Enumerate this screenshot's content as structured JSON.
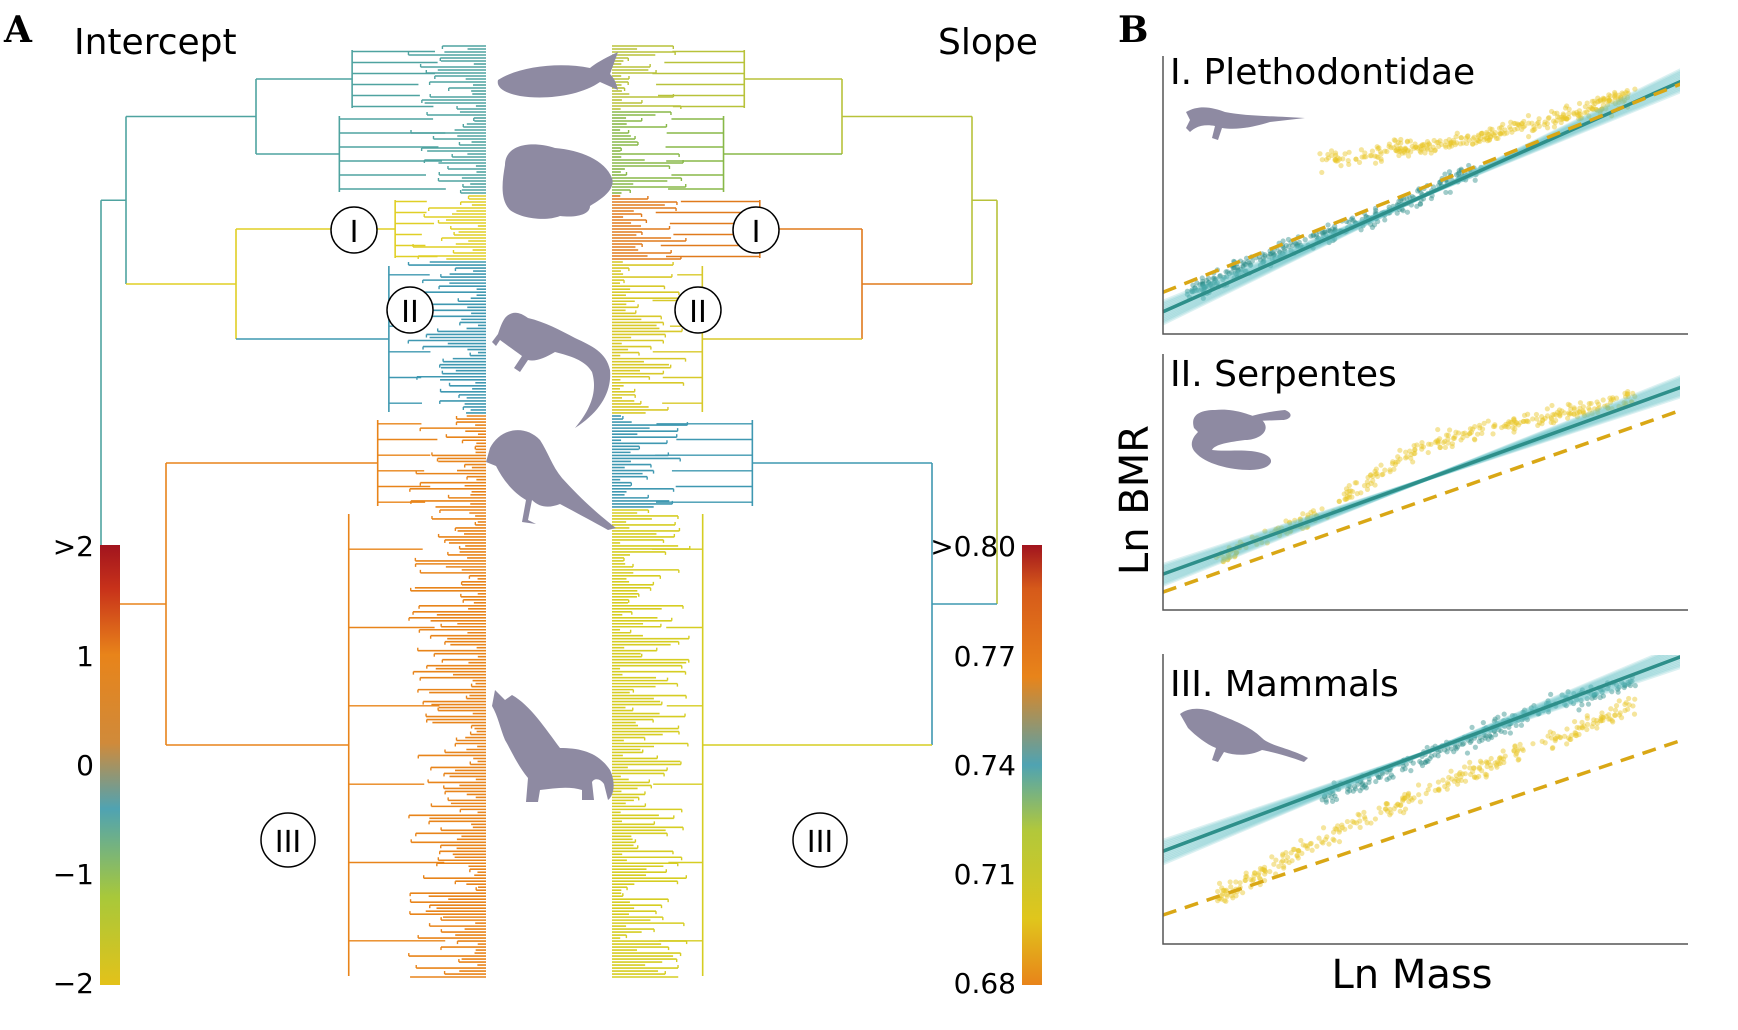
{
  "figure": {
    "panel_a": {
      "letter": "A",
      "left_title": "Intercept",
      "right_title": "Slope",
      "icons": [
        "fish-icon",
        "frog-icon",
        "lizard-icon",
        "bird-icon",
        "wolf-icon"
      ]
    },
    "panel_b": {
      "letter": "B",
      "ylabel": "Ln BMR",
      "xlabel": "Ln Mass"
    }
  },
  "chart_data": [
    {
      "type": "heatmap",
      "title": "Intercept",
      "description_kind": "phylogenetic tree colored by intercept",
      "colorbar": {
        "ticks": [
          ">2",
          "1",
          "0",
          "−1",
          "−2"
        ],
        "range": [
          -2,
          2
        ],
        "colors": [
          "#a1141e",
          "#e8841a",
          "#4fa3b2",
          "#d6cd22"
        ]
      },
      "clade_labels": [
        "I",
        "II",
        "III"
      ],
      "clade_colors": {
        "fish": "#4fa3a0",
        "amphibians": "#4fa3a0",
        "plethodontidae": "#e0cf25",
        "reptiles": "#3f98b1",
        "birds": "#e8841a",
        "mammals": "#e8841a"
      }
    },
    {
      "type": "heatmap",
      "title": "Slope",
      "description_kind": "phylogenetic tree colored by slope",
      "colorbar": {
        "ticks": [
          ">0.80",
          "0.77",
          "0.74",
          "0.71",
          "0.68"
        ],
        "range": [
          0.68,
          0.8
        ],
        "colors": [
          "#a1141e",
          "#e8841a",
          "#4fa3b2",
          "#d6cd22",
          "#e8841a"
        ]
      },
      "clade_labels": [
        "I",
        "II",
        "III"
      ],
      "clade_colors": {
        "fish": "#b8c23a",
        "amphibians": "#88b848",
        "plethodontidae": "#e07a1c",
        "reptiles": "#d8c92a",
        "birds": "#3f98b1",
        "mammals": "#d6cd22"
      }
    },
    {
      "type": "scatter",
      "title": "I. Plethodontidae",
      "xlabel": "Ln Mass",
      "ylabel": "Ln BMR",
      "xlim": [
        0,
        10
      ],
      "ylim": [
        0,
        10
      ],
      "series": [
        {
          "kind": "points",
          "color": "#e8c626",
          "cloud": [
            [
              3,
              6.3
            ],
            [
              4,
              6.5
            ],
            [
              5,
              6.8
            ],
            [
              6,
              7.1
            ],
            [
              7,
              7.5
            ],
            [
              8,
              8.0
            ],
            [
              9,
              8.7
            ]
          ]
        },
        {
          "kind": "points",
          "color": "#2e8f8a",
          "cloud": [
            [
              0.5,
              1.5
            ],
            [
              2,
              2.8
            ],
            [
              4,
              4.2
            ],
            [
              6,
              6.0
            ]
          ]
        },
        {
          "kind": "fit",
          "color": "#2e8f8a",
          "line": [
            [
              0,
              0.8
            ],
            [
              10,
              9.2
            ]
          ]
        },
        {
          "kind": "dashed-fit",
          "color": "#d9a715",
          "line": [
            [
              0,
              1.5
            ],
            [
              10,
              9.1
            ]
          ]
        }
      ]
    },
    {
      "type": "scatter",
      "title": "II. Serpentes",
      "xlabel": "Ln Mass",
      "ylabel": "Ln BMR",
      "xlim": [
        0,
        10
      ],
      "ylim": [
        0,
        10
      ],
      "series": [
        {
          "kind": "points",
          "color": "#e8c626",
          "cloud": [
            [
              1,
              2.0
            ],
            [
              3,
              3.8
            ],
            [
              5,
              6.5
            ],
            [
              7,
              7.4
            ],
            [
              9,
              8.3
            ]
          ]
        },
        {
          "kind": "fit",
          "color": "#2e8f8a",
          "line": [
            [
              0,
              1.4
            ],
            [
              10,
              8.8
            ]
          ]
        },
        {
          "kind": "dashed-fit",
          "color": "#d9a715",
          "line": [
            [
              0,
              0.7
            ],
            [
              10,
              7.9
            ]
          ]
        }
      ]
    },
    {
      "type": "scatter",
      "title": "III. Mammals",
      "xlabel": "Ln Mass",
      "ylabel": "Ln BMR",
      "xlim": [
        0,
        10
      ],
      "ylim": [
        0,
        10
      ],
      "series": [
        {
          "kind": "points",
          "color": "#2e8f8a",
          "cloud": [
            [
              3,
              5.0
            ],
            [
              5,
              6.4
            ],
            [
              7,
              8.0
            ],
            [
              9,
              9.1
            ]
          ]
        },
        {
          "kind": "points",
          "color": "#e8c626",
          "cloud": [
            [
              1,
              1.5
            ],
            [
              3,
              3.6
            ],
            [
              5,
              5.2
            ],
            [
              7,
              6.8
            ],
            [
              9,
              8.2
            ]
          ]
        },
        {
          "kind": "fit",
          "color": "#2e8f8a",
          "line": [
            [
              0,
              3.2
            ],
            [
              10,
              10.0
            ]
          ]
        },
        {
          "kind": "dashed-fit",
          "color": "#d9a715",
          "line": [
            [
              0,
              1.0
            ],
            [
              10,
              7.1
            ]
          ]
        }
      ]
    }
  ]
}
